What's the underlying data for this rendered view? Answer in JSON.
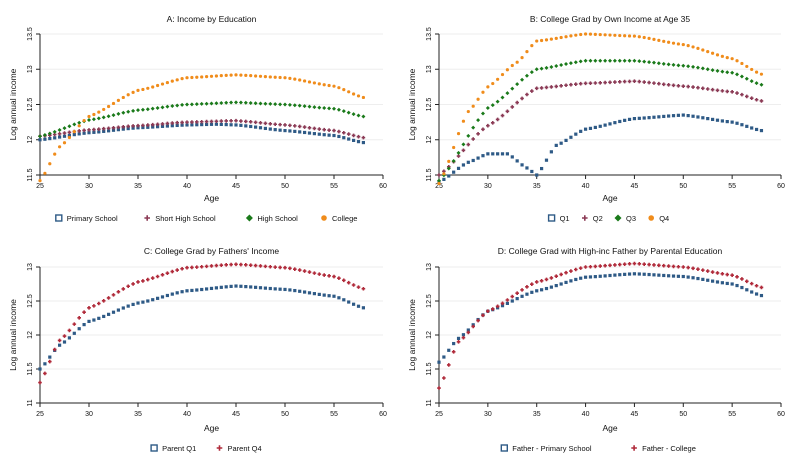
{
  "colors": {
    "axis": "#222222",
    "grid": "#eeeeee"
  },
  "chart_data": [
    {
      "type": "line",
      "title": "A: Income by Education",
      "xlabel": "Age",
      "ylabel": "Log annual income",
      "xlim": [
        25,
        60
      ],
      "ylim": [
        11.5,
        13.5
      ],
      "xticks": [
        25,
        30,
        35,
        40,
        45,
        50,
        55,
        60
      ],
      "yticks": [
        11.5,
        12,
        12.5,
        13,
        13.5
      ],
      "ytick_labels": [
        "11.5",
        "12",
        "12.5",
        "13",
        "13.5"
      ],
      "legend_position": "bottom",
      "series": [
        {
          "name": "Primary School",
          "color": "#2e5a86",
          "marker": "square",
          "anchors": [
            [
              25,
              12.0
            ],
            [
              30,
              12.1
            ],
            [
              35,
              12.17
            ],
            [
              40,
              12.21
            ],
            [
              43,
              12.22
            ],
            [
              45,
              12.21
            ],
            [
              50,
              12.13
            ],
            [
              55,
              12.06
            ],
            [
              58,
              11.96
            ]
          ]
        },
        {
          "name": "Short High School",
          "color": "#8b3a55",
          "marker": "plus",
          "anchors": [
            [
              25,
              12.05
            ],
            [
              30,
              12.14
            ],
            [
              35,
              12.2
            ],
            [
              40,
              12.25
            ],
            [
              45,
              12.27
            ],
            [
              50,
              12.21
            ],
            [
              55,
              12.13
            ],
            [
              58,
              12.03
            ]
          ]
        },
        {
          "name": "High School",
          "color": "#1a7a1a",
          "marker": "diamond",
          "anchors": [
            [
              25,
              12.05
            ],
            [
              30,
              12.28
            ],
            [
              35,
              12.42
            ],
            [
              40,
              12.5
            ],
            [
              45,
              12.53
            ],
            [
              50,
              12.5
            ],
            [
              55,
              12.44
            ],
            [
              58,
              12.33
            ]
          ]
        },
        {
          "name": "College",
          "color": "#f08c1b",
          "marker": "circle",
          "anchors": [
            [
              25,
              11.42
            ],
            [
              27,
              11.9
            ],
            [
              30,
              12.33
            ],
            [
              35,
              12.7
            ],
            [
              40,
              12.88
            ],
            [
              45,
              12.92
            ],
            [
              50,
              12.88
            ],
            [
              55,
              12.76
            ],
            [
              58,
              12.6
            ]
          ]
        }
      ]
    },
    {
      "type": "line",
      "title": "B: College Grad by Own Income at Age 35",
      "xlabel": "Age",
      "ylabel": "Log annual income",
      "xlim": [
        25,
        60
      ],
      "ylim": [
        11.5,
        13.5
      ],
      "xticks": [
        25,
        30,
        35,
        40,
        45,
        50,
        55,
        60
      ],
      "yticks": [
        11.5,
        12,
        12.5,
        13,
        13.5
      ],
      "ytick_labels": [
        "11.5",
        "12",
        "12.5",
        "13",
        "13.5"
      ],
      "legend_position": "bottom",
      "series": [
        {
          "name": "Q1",
          "color": "#2e5a86",
          "marker": "square",
          "anchors": [
            [
              25,
              11.4
            ],
            [
              28,
              11.68
            ],
            [
              30,
              11.8
            ],
            [
              32,
              11.8
            ],
            [
              34,
              11.6
            ],
            [
              35,
              11.5
            ],
            [
              37,
              11.92
            ],
            [
              40,
              12.15
            ],
            [
              45,
              12.3
            ],
            [
              50,
              12.35
            ],
            [
              55,
              12.25
            ],
            [
              58,
              12.13
            ]
          ]
        },
        {
          "name": "Q2",
          "color": "#8b3a55",
          "marker": "plus",
          "anchors": [
            [
              25,
              11.5
            ],
            [
              30,
              12.2
            ],
            [
              35,
              12.73
            ],
            [
              40,
              12.8
            ],
            [
              45,
              12.83
            ],
            [
              50,
              12.76
            ],
            [
              55,
              12.68
            ],
            [
              58,
              12.55
            ]
          ]
        },
        {
          "name": "Q3",
          "color": "#1a7a1a",
          "marker": "diamond",
          "anchors": [
            [
              25,
              11.42
            ],
            [
              30,
              12.45
            ],
            [
              35,
              13.0
            ],
            [
              40,
              13.12
            ],
            [
              45,
              13.12
            ],
            [
              50,
              13.05
            ],
            [
              55,
              12.95
            ],
            [
              58,
              12.78
            ]
          ]
        },
        {
          "name": "Q4",
          "color": "#f08c1b",
          "marker": "circle",
          "anchors": [
            [
              25,
              11.38
            ],
            [
              28,
              12.4
            ],
            [
              30,
              12.75
            ],
            [
              33,
              13.1
            ],
            [
              35,
              13.4
            ],
            [
              40,
              13.5
            ],
            [
              45,
              13.47
            ],
            [
              50,
              13.35
            ],
            [
              55,
              13.15
            ],
            [
              58,
              12.93
            ]
          ]
        }
      ]
    },
    {
      "type": "line",
      "title": "C: College Grad by Fathers' Income",
      "xlabel": "Age",
      "ylabel": "Log annual income",
      "xlim": [
        25,
        60
      ],
      "ylim": [
        11,
        13
      ],
      "xticks": [
        25,
        30,
        35,
        40,
        45,
        50,
        55,
        60
      ],
      "yticks": [
        11,
        11.5,
        12,
        12.5,
        13
      ],
      "ytick_labels": [
        "11",
        "11.5",
        "12",
        "12.5",
        "13"
      ],
      "legend_position": "bottom",
      "series": [
        {
          "name": "Parent Q1",
          "color": "#2e5a86",
          "marker": "square",
          "anchors": [
            [
              25,
              11.5
            ],
            [
              27,
              11.85
            ],
            [
              30,
              12.2
            ],
            [
              35,
              12.47
            ],
            [
              40,
              12.65
            ],
            [
              45,
              12.72
            ],
            [
              50,
              12.67
            ],
            [
              55,
              12.57
            ],
            [
              58,
              12.4
            ]
          ]
        },
        {
          "name": "Parent Q4",
          "color": "#b02a3a",
          "marker": "plus",
          "anchors": [
            [
              25,
              11.3
            ],
            [
              27,
              11.92
            ],
            [
              30,
              12.4
            ],
            [
              35,
              12.78
            ],
            [
              40,
              12.99
            ],
            [
              45,
              13.04
            ],
            [
              50,
              12.99
            ],
            [
              55,
              12.86
            ],
            [
              58,
              12.68
            ]
          ]
        }
      ]
    },
    {
      "type": "line",
      "title": "D: College Grad with High-inc Father by Parental Education",
      "xlabel": "Age",
      "ylabel": "Log annual income",
      "xlim": [
        25,
        60
      ],
      "ylim": [
        11,
        13
      ],
      "xticks": [
        25,
        30,
        35,
        40,
        45,
        50,
        55,
        60
      ],
      "yticks": [
        11,
        11.5,
        12,
        12.5,
        13
      ],
      "ytick_labels": [
        "11",
        "11.5",
        "12",
        "12.5",
        "13"
      ],
      "legend_position": "bottom",
      "series": [
        {
          "name": "Father - Primary School",
          "color": "#2e5a86",
          "marker": "square",
          "anchors": [
            [
              25,
              11.6
            ],
            [
              27,
              11.95
            ],
            [
              30,
              12.35
            ],
            [
              35,
              12.65
            ],
            [
              40,
              12.85
            ],
            [
              45,
              12.9
            ],
            [
              50,
              12.86
            ],
            [
              55,
              12.75
            ],
            [
              58,
              12.58
            ]
          ]
        },
        {
          "name": "Father - College",
          "color": "#b02a3a",
          "marker": "plus",
          "anchors": [
            [
              25,
              11.22
            ],
            [
              27,
              11.9
            ],
            [
              30,
              12.35
            ],
            [
              35,
              12.78
            ],
            [
              40,
              13.0
            ],
            [
              45,
              13.05
            ],
            [
              50,
              13.0
            ],
            [
              55,
              12.88
            ],
            [
              58,
              12.7
            ]
          ]
        }
      ]
    }
  ]
}
